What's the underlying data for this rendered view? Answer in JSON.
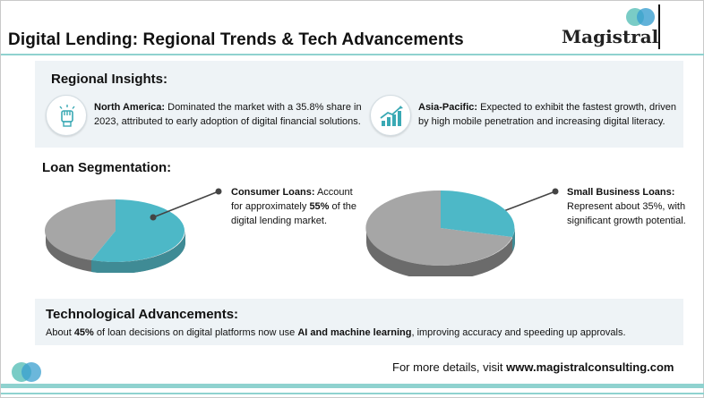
{
  "header": {
    "title": "Digital Lending: Regional Trends & Tech Advancements",
    "logo_text": "Magistral"
  },
  "regional": {
    "heading": "Regional Insights:",
    "north_america": {
      "icon": "fist-icon",
      "label": "North America:",
      "text_line1": " Dominated the market with a 35.8% share in",
      "text_line2": "2023, attributed to early adoption of digital financial solutions."
    },
    "asia_pacific": {
      "icon": "growth-chart-icon",
      "label": "Asia-Pacific:",
      "text_line1": " Expected to exhibit the fastest growth, driven",
      "text_line2": "by high mobile penetration and increasing digital literacy."
    }
  },
  "loans": {
    "heading": "Loan Segmentation:",
    "consumer": {
      "label": "Consumer Loans:",
      "line1_rest": " Account",
      "line2_pre": "for approximately ",
      "line2_bold": "55%",
      "line2_post": " of the",
      "line3": "digital lending market.",
      "share": 0.55
    },
    "small_business": {
      "label": "Small Business Loans:",
      "line2": "Represent about 35%, with",
      "line3": "significant growth potential.",
      "share": 0.35
    }
  },
  "tech": {
    "heading": "Technological Advancements:",
    "pre": "About ",
    "b1": "45%",
    "mid": " of loan decisions on digital platforms now use ",
    "b2": "AI and machine learning",
    "post": ", improving accuracy and speeding up approvals."
  },
  "footer": {
    "pre": "For more details, visit ",
    "url": "www.magistralconsulting.com"
  },
  "colors": {
    "accent": "#8fd2cf",
    "pie_highlight": "#4db8c7",
    "pie_rest": "#a6a6a6"
  }
}
